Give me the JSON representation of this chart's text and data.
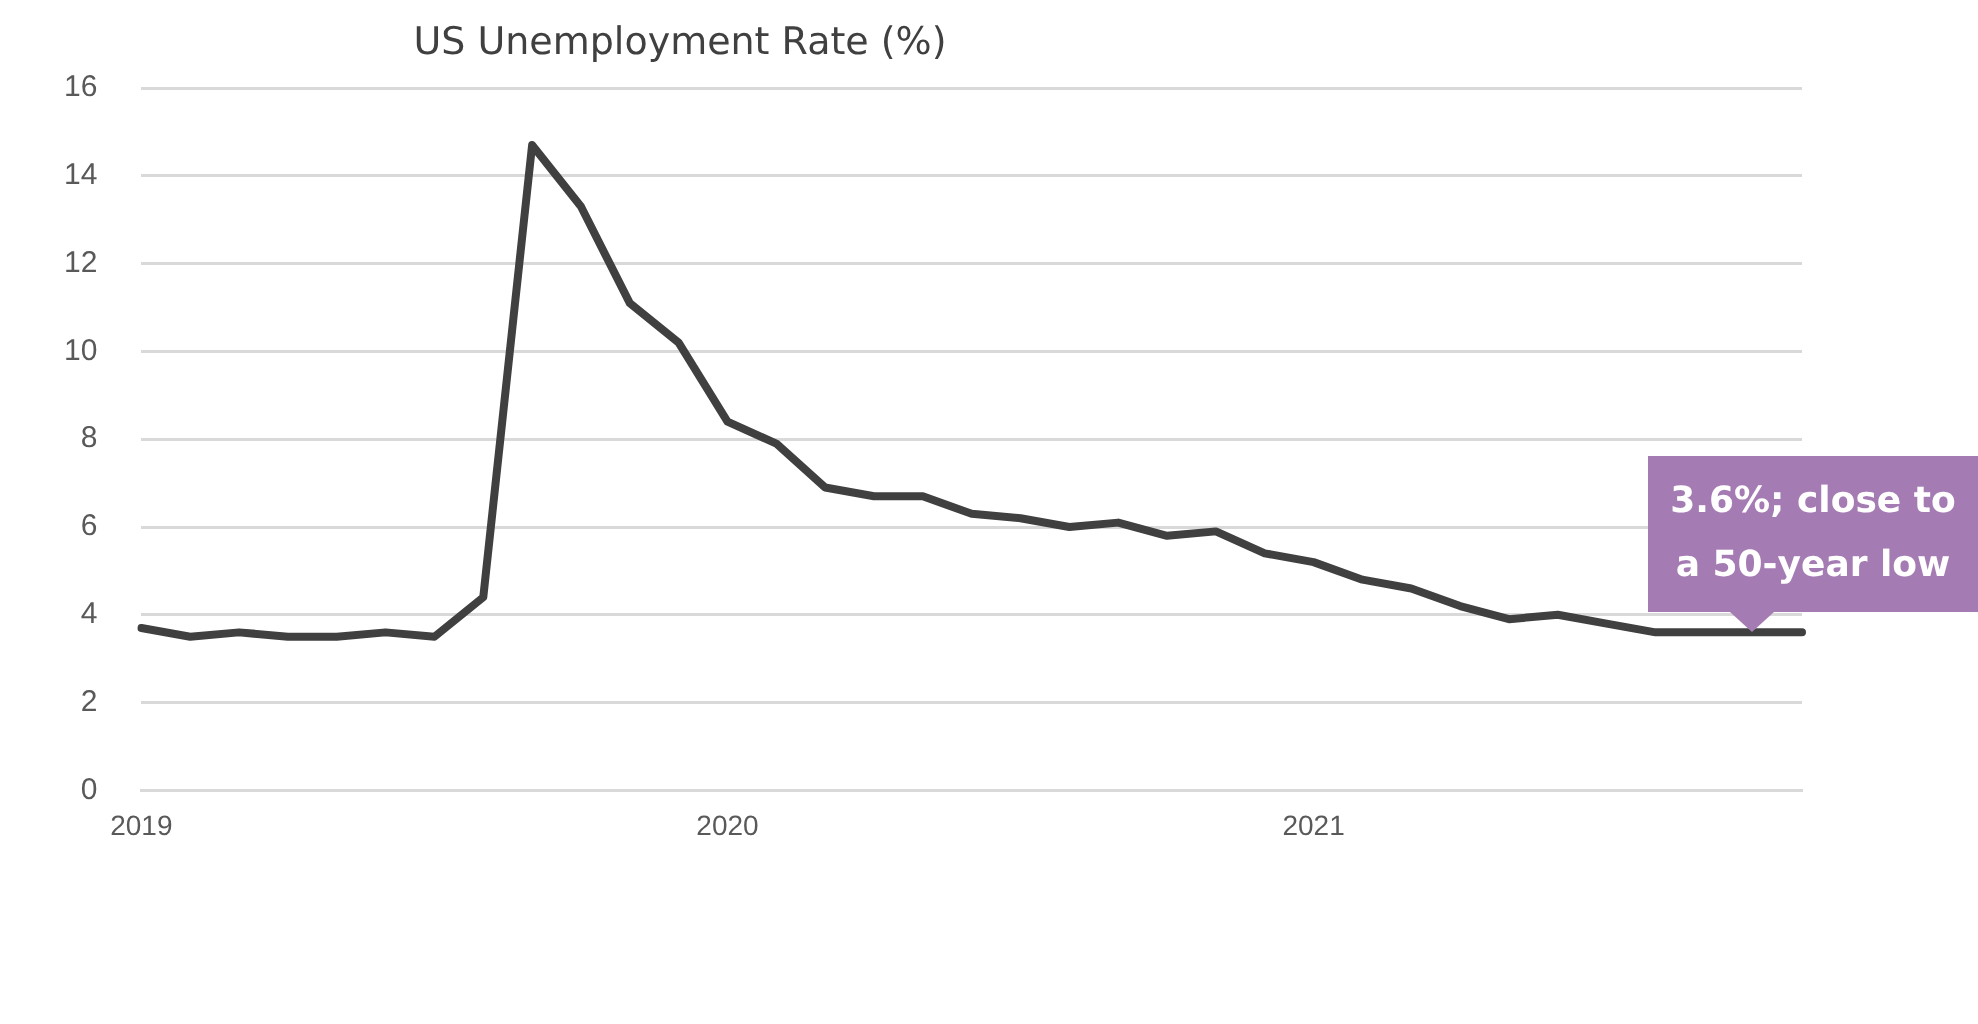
{
  "chart_data": {
    "type": "line",
    "title": "US Unemployment Rate (%)",
    "categories": [
      "2019",
      null,
      null,
      null,
      null,
      null,
      null,
      null,
      null,
      null,
      null,
      null,
      "2020",
      null,
      null,
      null,
      null,
      null,
      null,
      null,
      null,
      null,
      null,
      null,
      "2021",
      null,
      null,
      null,
      null,
      null,
      null,
      null,
      null,
      null,
      null
    ],
    "series": [
      {
        "color": "#404040",
        "values": [
          3.7,
          3.5,
          3.6,
          3.5,
          3.5,
          3.6,
          3.5,
          4.4,
          14.7,
          13.3,
          11.1,
          10.2,
          8.4,
          7.9,
          6.9,
          6.7,
          6.7,
          6.3,
          6.2,
          6.0,
          6.1,
          5.8,
          5.9,
          5.4,
          5.2,
          4.8,
          4.6,
          4.2,
          3.9,
          4.0,
          3.8,
          3.6,
          3.6,
          3.6,
          3.6
        ]
      }
    ],
    "ylim": [
      0,
      16
    ],
    "yticks": [
      0,
      2,
      4,
      6,
      8,
      10,
      12,
      14,
      16
    ],
    "grid": "y",
    "legend": false,
    "marker": "none",
    "line_style": "solid",
    "annotations": [
      "3.6%; close to a 50-year low"
    ]
  }
}
